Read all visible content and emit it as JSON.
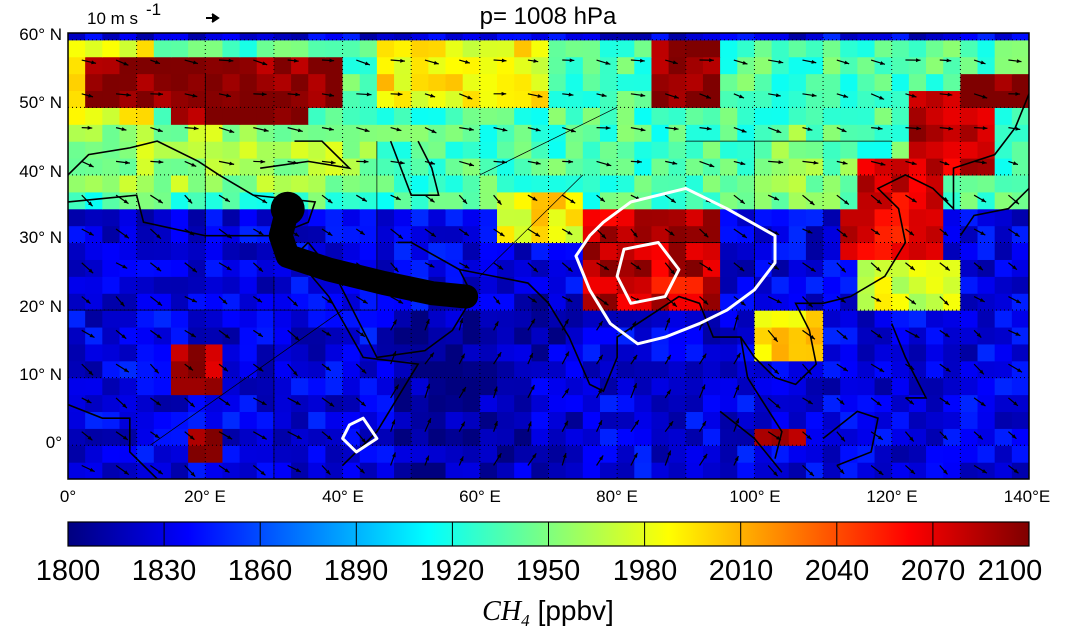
{
  "title": "p=   1008 hPa",
  "wind_reference": {
    "label": "10 m s",
    "superscript": "-1"
  },
  "map": {
    "x_ticks": [
      "0°",
      "20° E",
      "40° E",
      "60° E",
      "80° E",
      "100° E",
      "120° E",
      "140°E"
    ],
    "y_ticks": [
      "60° N",
      "50° N",
      "40° N",
      "30° N",
      "20° N",
      "10° N",
      "0°"
    ],
    "lon_range": [
      0,
      140
    ],
    "lat_range": [
      -5,
      61
    ],
    "grid": true
  },
  "colorbar": {
    "ticks": [
      "1800",
      "1830",
      "1860",
      "1890",
      "1920",
      "1950",
      "1980",
      "2010",
      "2040",
      "2070",
      "2100"
    ],
    "range": [
      1800,
      2100
    ],
    "label_symbol": "CH",
    "label_subscript": "4",
    "label_unit": "[ppbv]",
    "colormap": [
      "#00007f",
      "#0000ff",
      "#007fff",
      "#00ffff",
      "#7fff7f",
      "#ffff00",
      "#ff7f00",
      "#ff0000",
      "#7f0000"
    ]
  },
  "chart_data": {
    "type": "heatmap",
    "title": "p=   1008 hPa",
    "variable": "CH4 [ppbv]",
    "xlim": [
      0,
      140
    ],
    "ylim": [
      -5,
      61
    ],
    "vmin": 1800,
    "vmax": 2100,
    "regions": [
      {
        "lon": [
          0,
          140
        ],
        "lat": [
          -5,
          35
        ],
        "value": 1830
      },
      {
        "lon": [
          0,
          140
        ],
        "lat": [
          35,
          61
        ],
        "value": 1935
      },
      {
        "lon": [
          0,
          12
        ],
        "lat": [
          44,
          61
        ],
        "value": 1990
      },
      {
        "lon": [
          3,
          40
        ],
        "lat": [
          50,
          58
        ],
        "value": 2100
      },
      {
        "lon": [
          15,
          35
        ],
        "lat": [
          45,
          50
        ],
        "value": 2100
      },
      {
        "lon": [
          0,
          45
        ],
        "lat": [
          38,
          47
        ],
        "value": 1960
      },
      {
        "lon": [
          62,
          75
        ],
        "lat": [
          30,
          38
        ],
        "value": 1990
      },
      {
        "lon": [
          76,
          95
        ],
        "lat": [
          20,
          34
        ],
        "value": 2080
      },
      {
        "lon": [
          85,
          92
        ],
        "lat": [
          22,
          26
        ],
        "value": 2040
      },
      {
        "lon": [
          113,
          128
        ],
        "lat": [
          28,
          43
        ],
        "value": 2070
      },
      {
        "lon": [
          122,
          135
        ],
        "lat": [
          40,
          52
        ],
        "value": 2080
      },
      {
        "lon": [
          100,
          115
        ],
        "lat": [
          35,
          48
        ],
        "value": 1950
      },
      {
        "lon": [
          115,
          130
        ],
        "lat": [
          20,
          28
        ],
        "value": 1980
      },
      {
        "lon": [
          100,
          110
        ],
        "lat": [
          12,
          20
        ],
        "value": 2000
      },
      {
        "lon": [
          15,
          23
        ],
        "lat": [
          8,
          15
        ],
        "value": 2090
      },
      {
        "lon": [
          17,
          22
        ],
        "lat": [
          -2,
          3
        ],
        "value": 2100
      },
      {
        "lon": [
          101,
          107
        ],
        "lat": [
          -1,
          2
        ],
        "value": 2100
      },
      {
        "lon": [
          84,
          94
        ],
        "lat": [
          50,
          61
        ],
        "value": 2100
      },
      {
        "lon": [
          45,
          70
        ],
        "lat": [
          50,
          61
        ],
        "value": 1990
      },
      {
        "lon": [
          130,
          140
        ],
        "lat": [
          50,
          56
        ],
        "value": 2100
      },
      {
        "lon": [
          47,
          60
        ],
        "lat": [
          -5,
          20
        ],
        "value": 1810
      },
      {
        "lon": [
          60,
          75
        ],
        "lat": [
          -5,
          22
        ],
        "value": 1820
      }
    ],
    "trajectory": [
      [
        32,
        35
      ],
      [
        31,
        31
      ],
      [
        32,
        28
      ],
      [
        38,
        26
      ],
      [
        46,
        24
      ],
      [
        53,
        22.5
      ],
      [
        58,
        22
      ]
    ],
    "white_contours": [
      {
        "points": [
          [
            78,
            33
          ],
          [
            82,
            36
          ],
          [
            90,
            38
          ],
          [
            96,
            35
          ],
          [
            103,
            31
          ],
          [
            103,
            27
          ],
          [
            100,
            23
          ],
          [
            96,
            20
          ],
          [
            92,
            18
          ],
          [
            87,
            16
          ],
          [
            83,
            15
          ],
          [
            79,
            18
          ],
          [
            76,
            23
          ],
          [
            74,
            28
          ],
          [
            76,
            31
          ]
        ]
      },
      {
        "points": [
          [
            81,
            29
          ],
          [
            86,
            30
          ],
          [
            89,
            26
          ],
          [
            87,
            22
          ],
          [
            82,
            21
          ],
          [
            80,
            25
          ]
        ]
      },
      {
        "points": [
          [
            41,
            3
          ],
          [
            43,
            4
          ],
          [
            45,
            1
          ],
          [
            42,
            -1
          ],
          [
            40,
            1
          ]
        ]
      }
    ]
  }
}
